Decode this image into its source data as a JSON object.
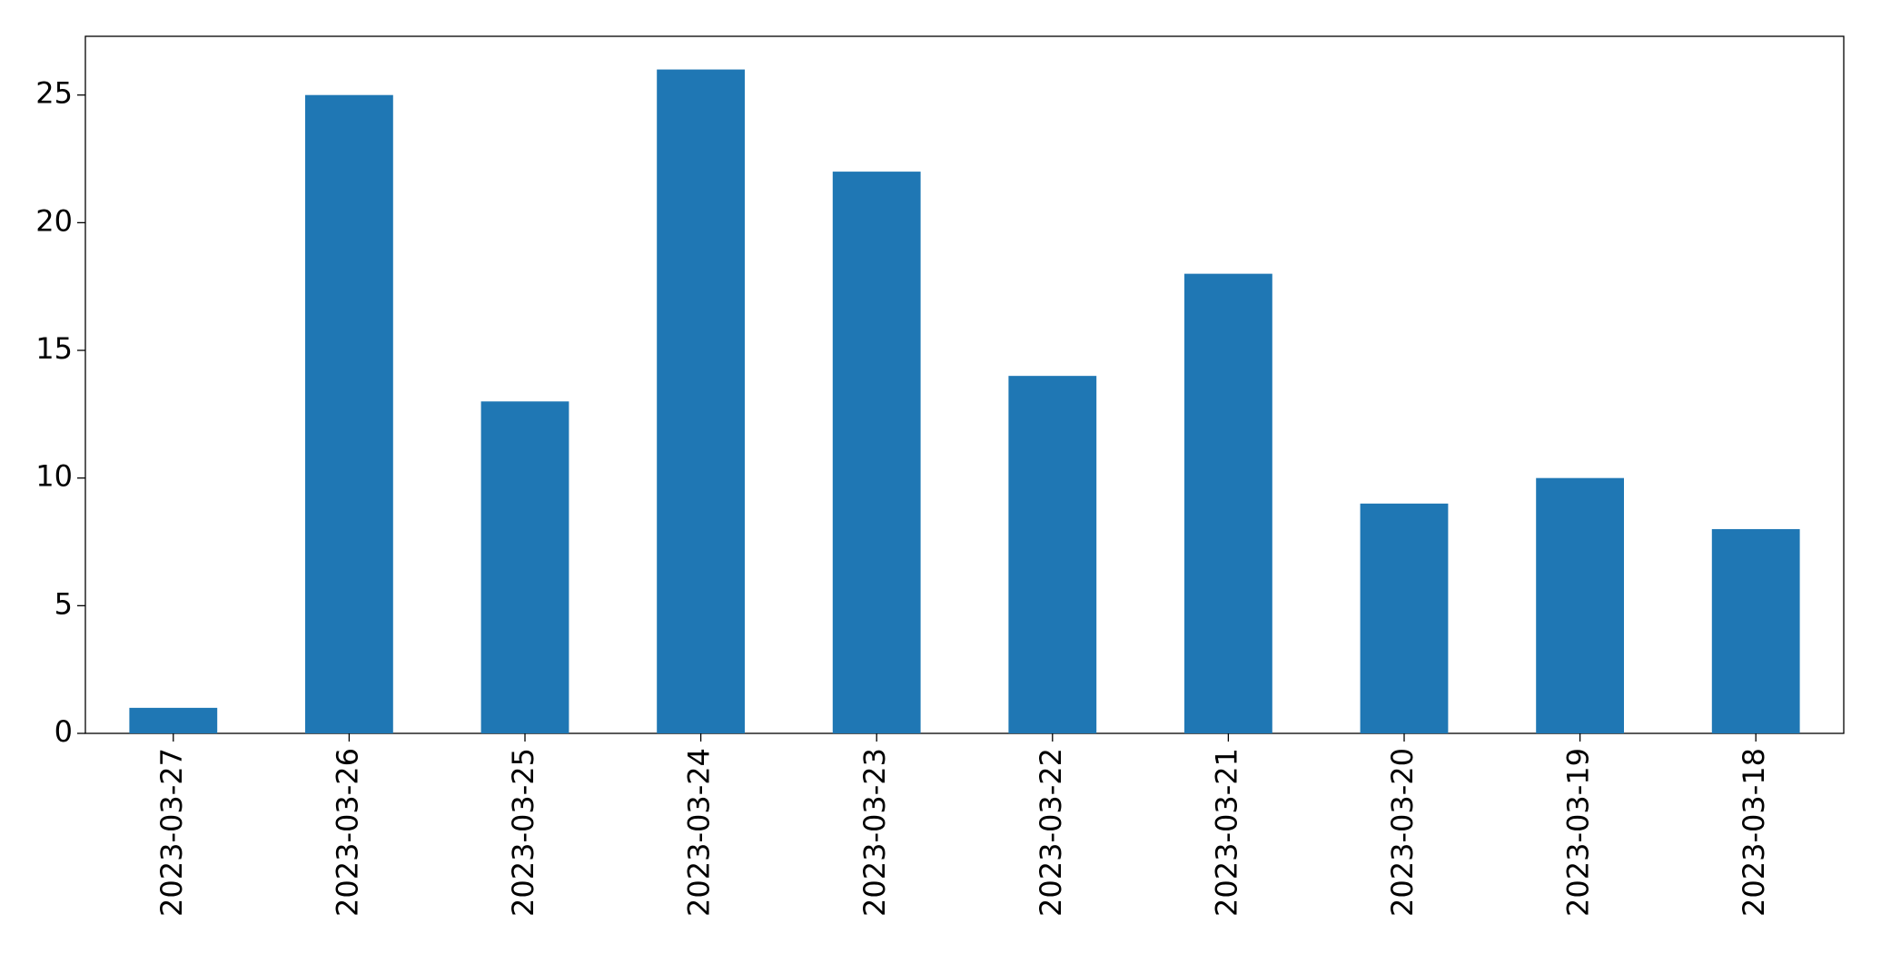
{
  "chart_data": {
    "type": "bar",
    "categories": [
      "2023-03-27",
      "2023-03-26",
      "2023-03-25",
      "2023-03-24",
      "2023-03-23",
      "2023-03-22",
      "2023-03-21",
      "2023-03-20",
      "2023-03-19",
      "2023-03-18"
    ],
    "values": [
      1,
      25,
      13,
      26,
      22,
      14,
      18,
      9,
      10,
      8
    ],
    "color": "#1f77b4",
    "ylim": [
      0,
      27.3
    ],
    "yticks": [
      0,
      5,
      10,
      15,
      20,
      25
    ],
    "grid": false
  }
}
